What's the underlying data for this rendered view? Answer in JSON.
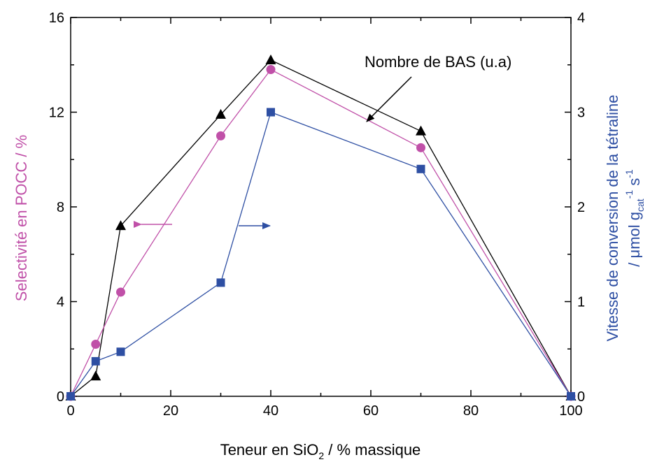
{
  "chart_data": {
    "type": "line",
    "xlabel": {
      "main": "Teneur en SiO",
      "sub": "2",
      "tail": " / % massique"
    },
    "ylabel_left": "Selectivité en POCC / %",
    "ylabel_right": {
      "line1": "Vitesse de conversion de la tétraline",
      "line2_prefix": "/ μmol g",
      "line2_sub": "cat",
      "line2_sup1": "-1",
      "line2_mid": " s",
      "line2_sup2": "-1"
    },
    "xlim": [
      0,
      100
    ],
    "ylim_left": [
      0,
      16
    ],
    "ylim_right": [
      0,
      4
    ],
    "x_ticks": [
      "0",
      "20",
      "40",
      "60",
      "80",
      "100"
    ],
    "y_left_ticks": [
      "0",
      "4",
      "8",
      "12",
      "16"
    ],
    "y_right_ticks": [
      "0",
      "1",
      "2",
      "3",
      "4"
    ],
    "annotation": "Nombre de BAS (u.a)",
    "colors": {
      "selectivity": "#c050a8",
      "rate": "#2e4fa3",
      "bas": "#000000"
    },
    "series": [
      {
        "key": "bas",
        "axis": "left",
        "marker": "triangle",
        "x": [
          0,
          5,
          10,
          30,
          40,
          70,
          100
        ],
        "y": [
          0,
          0.85,
          7.2,
          11.9,
          14.2,
          11.2,
          0
        ]
      },
      {
        "key": "selectivity",
        "axis": "left",
        "marker": "circle",
        "x": [
          0,
          5,
          10,
          30,
          40,
          70,
          100
        ],
        "y": [
          0,
          2.2,
          4.4,
          11.0,
          13.8,
          10.5,
          0
        ]
      },
      {
        "key": "rate",
        "axis": "right",
        "marker": "square",
        "x": [
          0,
          5,
          10,
          30,
          40,
          70,
          100
        ],
        "y": [
          0,
          0.37,
          0.47,
          1.2,
          3.0,
          2.4,
          0
        ]
      }
    ]
  }
}
